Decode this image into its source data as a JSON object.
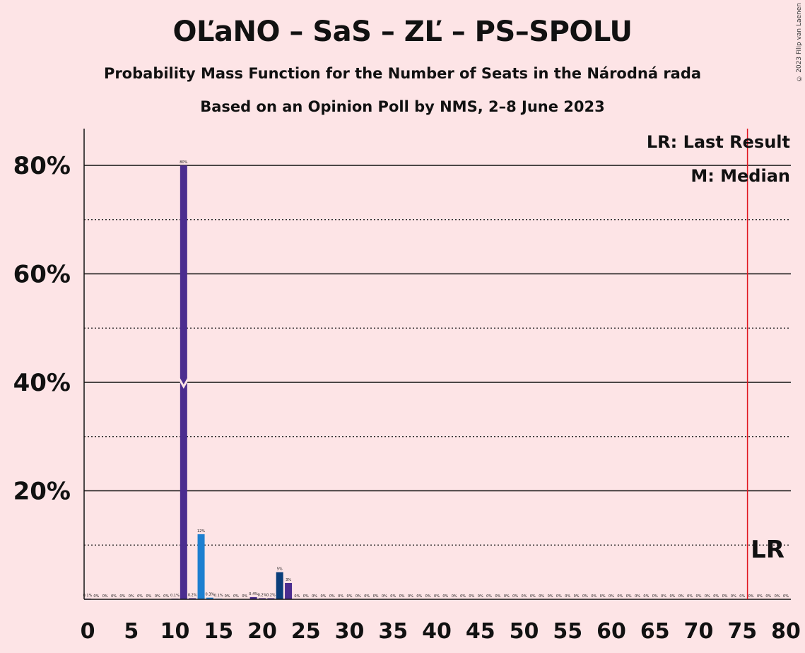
{
  "title": "OĽaNO – SaS – ZĽ – PS–SPOLU",
  "subtitle": "Probability Mass Function for the Number of Seats in the Národná rada",
  "subtitle2": "Based on an Opinion Poll by NMS, 2–8 June 2023",
  "copyright": "© 2023 Filip van Laenen",
  "legend": {
    "last_result": "LR: Last Result",
    "median": "M: Median",
    "lr_marker": "LR"
  },
  "colors": {
    "background": "#FDE4E6",
    "bar_purple": "#4B2D8F",
    "bar_blue": "#1C7FD0",
    "bar_navy": "#0B3E7A",
    "last_result_line": "#E0141E"
  },
  "chart_data": {
    "type": "bar",
    "xlim": [
      0,
      80
    ],
    "ylim": [
      0,
      87
    ],
    "x_ticks": [
      0,
      5,
      10,
      15,
      20,
      25,
      30,
      35,
      40,
      45,
      50,
      55,
      60,
      65,
      70,
      75,
      80
    ],
    "y_ticks": [
      {
        "value": 20,
        "label": "20%"
      },
      {
        "value": 40,
        "label": "40%"
      },
      {
        "value": 60,
        "label": "60%"
      },
      {
        "value": 80,
        "label": "80%"
      }
    ],
    "y_minor_ticks": [
      10,
      30,
      50,
      70
    ],
    "last_result": 76,
    "median": 11,
    "median_y": 40,
    "bars": [
      {
        "x": 0,
        "value": 0.1,
        "label": "0.1%",
        "color": "purple"
      },
      {
        "x": 1,
        "value": 0,
        "label": "0%",
        "color": "purple"
      },
      {
        "x": 2,
        "value": 0,
        "label": "0%",
        "color": "purple"
      },
      {
        "x": 3,
        "value": 0,
        "label": "0%",
        "color": "purple"
      },
      {
        "x": 4,
        "value": 0,
        "label": "0%",
        "color": "purple"
      },
      {
        "x": 5,
        "value": 0,
        "label": "0%",
        "color": "purple"
      },
      {
        "x": 6,
        "value": 0,
        "label": "0%",
        "color": "purple"
      },
      {
        "x": 7,
        "value": 0,
        "label": "0%",
        "color": "purple"
      },
      {
        "x": 8,
        "value": 0,
        "label": "0%",
        "color": "purple"
      },
      {
        "x": 9,
        "value": 0,
        "label": "0%",
        "color": "purple"
      },
      {
        "x": 10,
        "value": 0.1,
        "label": "0.1%",
        "color": "purple"
      },
      {
        "x": 11,
        "value": 80,
        "label": "80%",
        "color": "purple"
      },
      {
        "x": 12,
        "value": 0.2,
        "label": "0.2%",
        "color": "purple"
      },
      {
        "x": 13,
        "value": 12,
        "label": "12%",
        "color": "blue"
      },
      {
        "x": 14,
        "value": 0.3,
        "label": "0.3%",
        "color": "blue"
      },
      {
        "x": 15,
        "value": 0.1,
        "label": "0.1%",
        "color": "blue"
      },
      {
        "x": 16,
        "value": 0,
        "label": "0%",
        "color": "blue"
      },
      {
        "x": 17,
        "value": 0,
        "label": "0%",
        "color": "blue"
      },
      {
        "x": 18,
        "value": 0,
        "label": "0%",
        "color": "blue"
      },
      {
        "x": 19,
        "value": 0.4,
        "label": "0.4%",
        "color": "purple"
      },
      {
        "x": 20,
        "value": 0.2,
        "label": "0.2%",
        "color": "purple"
      },
      {
        "x": 21,
        "value": 0.2,
        "label": "0.2%",
        "color": "purple"
      },
      {
        "x": 22,
        "value": 5,
        "label": "5%",
        "color": "navy"
      },
      {
        "x": 23,
        "value": 3,
        "label": "3%",
        "color": "purple"
      },
      {
        "x": 24,
        "value": 0,
        "label": "0%",
        "color": "purple"
      },
      {
        "x": 25,
        "value": 0,
        "label": "0%",
        "color": "purple"
      },
      {
        "x": 26,
        "value": 0,
        "label": "0%",
        "color": "purple"
      },
      {
        "x": 27,
        "value": 0,
        "label": "0%",
        "color": "purple"
      },
      {
        "x": 28,
        "value": 0,
        "label": "0%",
        "color": "purple"
      },
      {
        "x": 29,
        "value": 0,
        "label": "0%",
        "color": "purple"
      },
      {
        "x": 30,
        "value": 0,
        "label": "0%",
        "color": "purple"
      },
      {
        "x": 31,
        "value": 0,
        "label": "0%",
        "color": "purple"
      },
      {
        "x": 32,
        "value": 0,
        "label": "0%",
        "color": "purple"
      },
      {
        "x": 33,
        "value": 0,
        "label": "0%",
        "color": "purple"
      },
      {
        "x": 34,
        "value": 0,
        "label": "0%",
        "color": "purple"
      },
      {
        "x": 35,
        "value": 0,
        "label": "0%",
        "color": "purple"
      },
      {
        "x": 36,
        "value": 0,
        "label": "0%",
        "color": "purple"
      },
      {
        "x": 37,
        "value": 0,
        "label": "0%",
        "color": "purple"
      },
      {
        "x": 38,
        "value": 0,
        "label": "0%",
        "color": "purple"
      },
      {
        "x": 39,
        "value": 0,
        "label": "0%",
        "color": "purple"
      },
      {
        "x": 40,
        "value": 0,
        "label": "0%",
        "color": "purple"
      },
      {
        "x": 41,
        "value": 0,
        "label": "0%",
        "color": "purple"
      },
      {
        "x": 42,
        "value": 0,
        "label": "0%",
        "color": "purple"
      },
      {
        "x": 43,
        "value": 0,
        "label": "0%",
        "color": "purple"
      },
      {
        "x": 44,
        "value": 0,
        "label": "0%",
        "color": "purple"
      },
      {
        "x": 45,
        "value": 0,
        "label": "0%",
        "color": "purple"
      },
      {
        "x": 46,
        "value": 0,
        "label": "0%",
        "color": "purple"
      },
      {
        "x": 47,
        "value": 0,
        "label": "0%",
        "color": "purple"
      },
      {
        "x": 48,
        "value": 0,
        "label": "0%",
        "color": "purple"
      },
      {
        "x": 49,
        "value": 0,
        "label": "0%",
        "color": "purple"
      },
      {
        "x": 50,
        "value": 0,
        "label": "0%",
        "color": "purple"
      },
      {
        "x": 51,
        "value": 0,
        "label": "0%",
        "color": "purple"
      },
      {
        "x": 52,
        "value": 0,
        "label": "0%",
        "color": "purple"
      },
      {
        "x": 53,
        "value": 0,
        "label": "0%",
        "color": "purple"
      },
      {
        "x": 54,
        "value": 0,
        "label": "0%",
        "color": "purple"
      },
      {
        "x": 55,
        "value": 0,
        "label": "0%",
        "color": "purple"
      },
      {
        "x": 56,
        "value": 0,
        "label": "0%",
        "color": "purple"
      },
      {
        "x": 57,
        "value": 0,
        "label": "0%",
        "color": "purple"
      },
      {
        "x": 58,
        "value": 0,
        "label": "0%",
        "color": "purple"
      },
      {
        "x": 59,
        "value": 0,
        "label": "0%",
        "color": "purple"
      },
      {
        "x": 60,
        "value": 0,
        "label": "0%",
        "color": "purple"
      },
      {
        "x": 61,
        "value": 0,
        "label": "0%",
        "color": "purple"
      },
      {
        "x": 62,
        "value": 0,
        "label": "0%",
        "color": "purple"
      },
      {
        "x": 63,
        "value": 0,
        "label": "0%",
        "color": "purple"
      },
      {
        "x": 64,
        "value": 0,
        "label": "0%",
        "color": "purple"
      },
      {
        "x": 65,
        "value": 0,
        "label": "0%",
        "color": "purple"
      },
      {
        "x": 66,
        "value": 0,
        "label": "0%",
        "color": "purple"
      },
      {
        "x": 67,
        "value": 0,
        "label": "0%",
        "color": "purple"
      },
      {
        "x": 68,
        "value": 0,
        "label": "0%",
        "color": "purple"
      },
      {
        "x": 69,
        "value": 0,
        "label": "0%",
        "color": "purple"
      },
      {
        "x": 70,
        "value": 0,
        "label": "0%",
        "color": "purple"
      },
      {
        "x": 71,
        "value": 0,
        "label": "0%",
        "color": "purple"
      },
      {
        "x": 72,
        "value": 0,
        "label": "0%",
        "color": "purple"
      },
      {
        "x": 73,
        "value": 0,
        "label": "0%",
        "color": "purple"
      },
      {
        "x": 74,
        "value": 0,
        "label": "0%",
        "color": "purple"
      },
      {
        "x": 75,
        "value": 0,
        "label": "0%",
        "color": "purple"
      },
      {
        "x": 76,
        "value": 0,
        "label": "0%",
        "color": "purple"
      },
      {
        "x": 77,
        "value": 0,
        "label": "0%",
        "color": "purple"
      },
      {
        "x": 78,
        "value": 0,
        "label": "0%",
        "color": "purple"
      },
      {
        "x": 79,
        "value": 0,
        "label": "0%",
        "color": "purple"
      },
      {
        "x": 80,
        "value": 0,
        "label": "0%",
        "color": "purple"
      }
    ]
  }
}
